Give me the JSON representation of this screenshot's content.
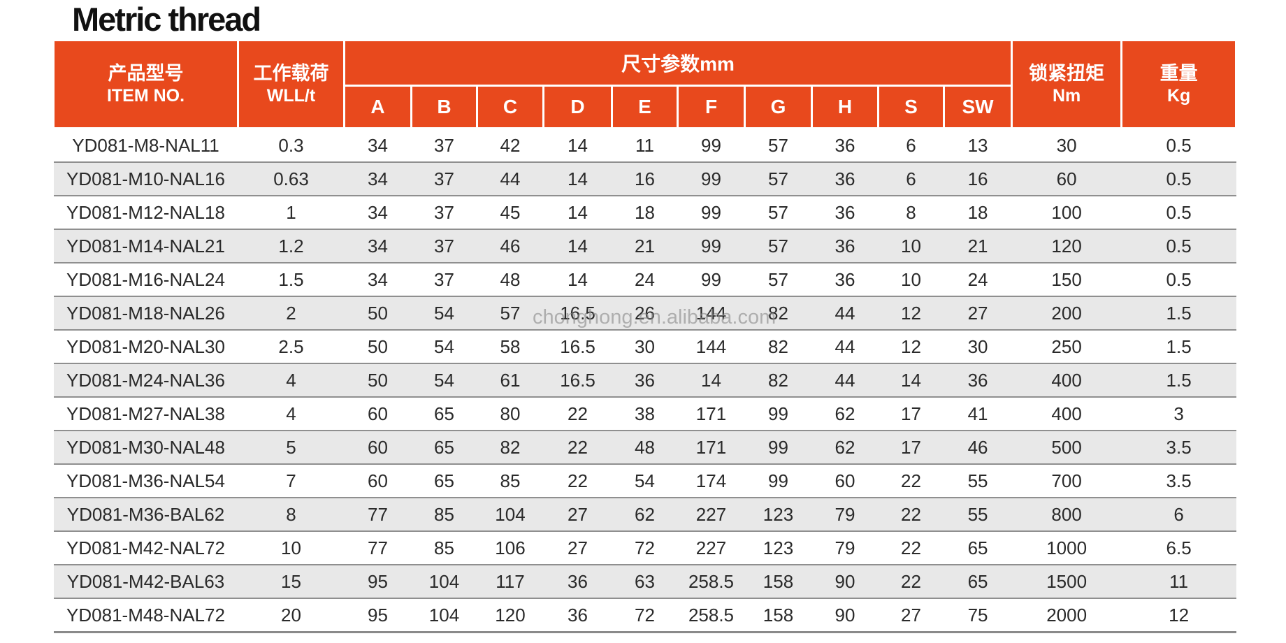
{
  "page_title": "Metric thread",
  "watermark": "chonghong.en.alibaba.com",
  "colors": {
    "header_bg": "#E8491D",
    "header_text": "#FFFFFF",
    "alt_row_bg": "#E8E8E8",
    "row_border": "#8F8F8F",
    "body_text": "#2A2A2A"
  },
  "table": {
    "header": {
      "item_zh": "产品型号",
      "item_en": "ITEM NO.",
      "wll_zh": "工作载荷",
      "wll_en": "WLL/t",
      "dim_group": "尺寸参数mm",
      "dim_cols": [
        "A",
        "B",
        "C",
        "D",
        "E",
        "F",
        "G",
        "H",
        "S",
        "SW"
      ],
      "torque_zh": "锁紧扭矩",
      "torque_en": "Nm",
      "weight_zh": "重量",
      "weight_en": "Kg"
    },
    "rows": [
      [
        "YD081-M8-NAL11",
        "0.3",
        "34",
        "37",
        "42",
        "14",
        "11",
        "99",
        "57",
        "36",
        "6",
        "13",
        "30",
        "0.5"
      ],
      [
        "YD081-M10-NAL16",
        "0.63",
        "34",
        "37",
        "44",
        "14",
        "16",
        "99",
        "57",
        "36",
        "6",
        "16",
        "60",
        "0.5"
      ],
      [
        "YD081-M12-NAL18",
        "1",
        "34",
        "37",
        "45",
        "14",
        "18",
        "99",
        "57",
        "36",
        "8",
        "18",
        "100",
        "0.5"
      ],
      [
        "YD081-M14-NAL21",
        "1.2",
        "34",
        "37",
        "46",
        "14",
        "21",
        "99",
        "57",
        "36",
        "10",
        "21",
        "120",
        "0.5"
      ],
      [
        "YD081-M16-NAL24",
        "1.5",
        "34",
        "37",
        "48",
        "14",
        "24",
        "99",
        "57",
        "36",
        "10",
        "24",
        "150",
        "0.5"
      ],
      [
        "YD081-M18-NAL26",
        "2",
        "50",
        "54",
        "57",
        "16.5",
        "26",
        "144",
        "82",
        "44",
        "12",
        "27",
        "200",
        "1.5"
      ],
      [
        "YD081-M20-NAL30",
        "2.5",
        "50",
        "54",
        "58",
        "16.5",
        "30",
        "144",
        "82",
        "44",
        "12",
        "30",
        "250",
        "1.5"
      ],
      [
        "YD081-M24-NAL36",
        "4",
        "50",
        "54",
        "61",
        "16.5",
        "36",
        "14",
        "82",
        "44",
        "14",
        "36",
        "400",
        "1.5"
      ],
      [
        "YD081-M27-NAL38",
        "4",
        "60",
        "65",
        "80",
        "22",
        "38",
        "171",
        "99",
        "62",
        "17",
        "41",
        "400",
        "3"
      ],
      [
        "YD081-M30-NAL48",
        "5",
        "60",
        "65",
        "82",
        "22",
        "48",
        "171",
        "99",
        "62",
        "17",
        "46",
        "500",
        "3.5"
      ],
      [
        "YD081-M36-NAL54",
        "7",
        "60",
        "65",
        "85",
        "22",
        "54",
        "174",
        "99",
        "60",
        "22",
        "55",
        "700",
        "3.5"
      ],
      [
        "YD081-M36-BAL62",
        "8",
        "77",
        "85",
        "104",
        "27",
        "62",
        "227",
        "123",
        "79",
        "22",
        "55",
        "800",
        "6"
      ],
      [
        "YD081-M42-NAL72",
        "10",
        "77",
        "85",
        "106",
        "27",
        "72",
        "227",
        "123",
        "79",
        "22",
        "65",
        "1000",
        "6.5"
      ],
      [
        "YD081-M42-BAL63",
        "15",
        "95",
        "104",
        "117",
        "36",
        "63",
        "258.5",
        "158",
        "90",
        "22",
        "65",
        "1500",
        "11"
      ],
      [
        "YD081-M48-NAL72",
        "20",
        "95",
        "104",
        "120",
        "36",
        "72",
        "258.5",
        "158",
        "90",
        "27",
        "75",
        "2000",
        "12"
      ]
    ]
  }
}
